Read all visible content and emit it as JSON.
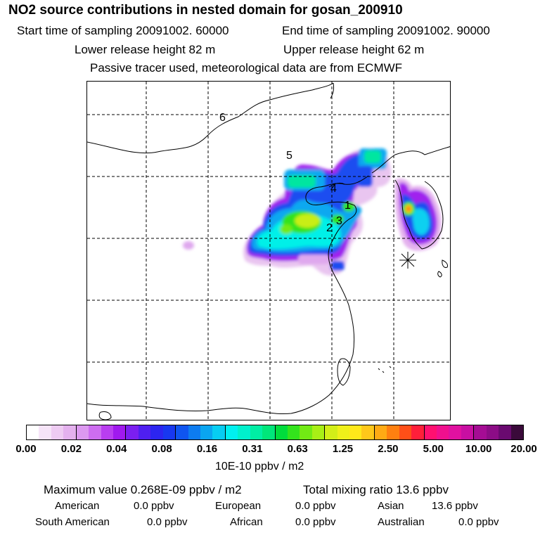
{
  "header": {
    "title": "NO2 source contributions in nested domain for gosan_200910",
    "start_label": "Start time of sampling 20091002. 60000",
    "end_label": "End time of sampling 20091002. 90000",
    "lower_release": "Lower release height   82 m",
    "upper_release": "Upper release height   62 m",
    "tracer_note": "Passive tracer used, meteorological data are from ECMWF"
  },
  "map": {
    "source_labels": [
      {
        "id": "1",
        "text": "1"
      },
      {
        "id": "2",
        "text": "2"
      },
      {
        "id": "3",
        "text": "3"
      },
      {
        "id": "4",
        "text": "4"
      },
      {
        "id": "5",
        "text": "5"
      },
      {
        "id": "6",
        "text": "6"
      }
    ],
    "receptor_marker": "asterisk-icon"
  },
  "colorbar": {
    "tick_labels": [
      "0.00",
      "0.02",
      "0.04",
      "0.08",
      "0.16",
      "0.31",
      "0.63",
      "1.25",
      "2.50",
      "5.00",
      "10.00",
      "20.00"
    ],
    "segments": [
      [
        "#ffffff",
        "#f6e4f8",
        "#eecbf2",
        "#e4b1ee"
      ],
      [
        "#dc99f0",
        "#cd6df0",
        "#b93ef0",
        "#a019ee"
      ],
      [
        "#7b1ff0",
        "#4f1ff0",
        "#2c25f0",
        "#1838f0"
      ],
      [
        "#0f55f0",
        "#0d7cf0",
        "#0aa5f0",
        "#07cdf2"
      ],
      [
        "#00f0f0",
        "#00f0cc",
        "#00eea4",
        "#00e67a"
      ],
      [
        "#00dc3c",
        "#33e31c",
        "#72ea14",
        "#a8ef16"
      ],
      [
        "#d3ee18",
        "#eff01a",
        "#ffe81a",
        "#ffc81a"
      ],
      [
        "#ffaa14",
        "#ff8010",
        "#ff4f18",
        "#ff1f3a"
      ],
      [
        "#ff1070",
        "#f0108e",
        "#e011a0",
        "#c80fa2"
      ],
      [
        "#a50c94",
        "#8c0c86",
        "#6a0a70",
        "#3a0a3a"
      ]
    ],
    "units": "10E-10 ppbv / m2"
  },
  "stats": {
    "max_value": "Maximum value  0.268E-09 ppbv / m2",
    "total_mixing": "Total mixing ratio      13.6 ppbv",
    "american_label": "American",
    "american_value": "0.0 ppbv",
    "european_label": "European",
    "european_value": "0.0 ppbv",
    "asian_label": "Asian",
    "asian_value": "13.6 ppbv",
    "south_american_label": "South American",
    "south_american_value": "0.0 ppbv",
    "african_label": "African",
    "african_value": "0.0 ppbv",
    "australian_label": "Australian",
    "australian_value": "0.0 ppbv"
  }
}
